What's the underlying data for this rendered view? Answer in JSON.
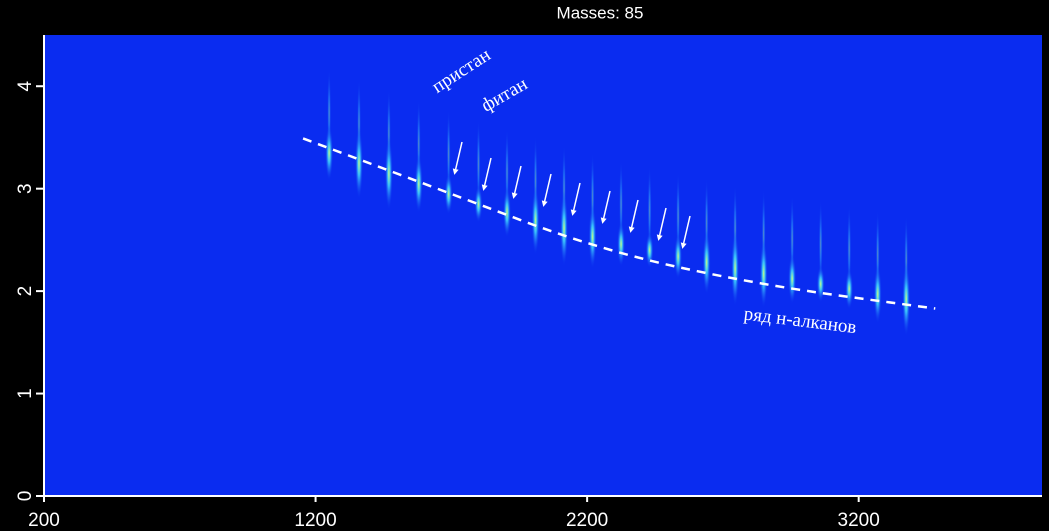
{
  "chart_data": {
    "type": "peak-map",
    "title": "Masses: 85",
    "xlim": [
      200,
      3875
    ],
    "xticks": [
      200,
      1200,
      2200,
      3200
    ],
    "ylim": [
      0,
      4.5
    ],
    "yticks": [
      0,
      1,
      2,
      3,
      4
    ],
    "background": "#0a2cf0",
    "line_color": "#ffffff",
    "peak_color": "#3fd8ff",
    "peaks": {
      "x": [
        1250,
        1360,
        1470,
        1580,
        1690,
        1800,
        1905,
        2010,
        2115,
        2220,
        2325,
        2430,
        2535,
        2640,
        2745,
        2850,
        2955,
        3060,
        3165,
        3270,
        3375
      ],
      "y": [
        3.35,
        3.25,
        3.15,
        3.05,
        2.95,
        2.85,
        2.77,
        2.69,
        2.61,
        2.53,
        2.46,
        2.4,
        2.34,
        2.28,
        2.22,
        2.17,
        2.12,
        2.07,
        2.02,
        1.97,
        1.92
      ]
    },
    "series": [
      {
        "color": "#ffffff",
        "x": [
          1154,
          1659,
          2248,
          2837,
          3482
        ],
        "values": [
          3.49,
          2.99,
          2.4,
          2.06,
          1.83
        ]
      }
    ],
    "annotations": [
      "пристан",
      "фитан",
      "ряд н-алканов"
    ]
  }
}
